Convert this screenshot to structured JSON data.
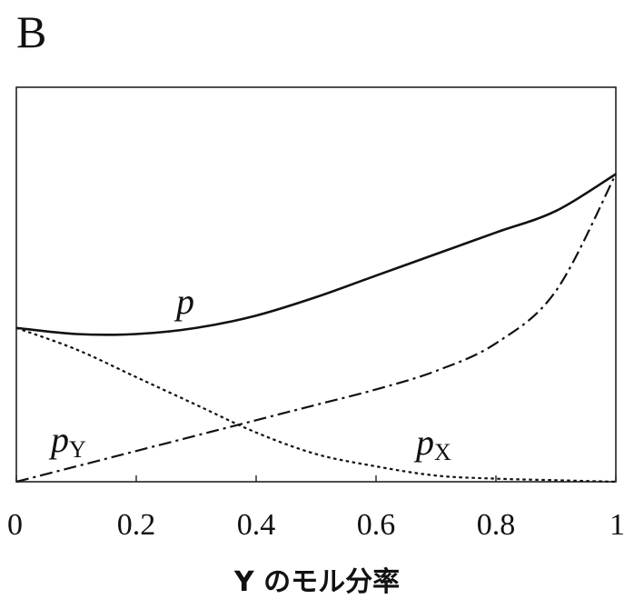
{
  "panel_label": "B",
  "chart_data": {
    "type": "line",
    "xlabel": "Y のモル分率",
    "ylabel": "",
    "xlim": [
      0,
      1
    ],
    "ylim": [
      0,
      1
    ],
    "xticks": [
      "0",
      "0.2",
      "0.4",
      "0.6",
      "0.8",
      "1"
    ],
    "grid": false,
    "x": [
      0,
      0.1,
      0.2,
      0.3,
      0.4,
      0.5,
      0.6,
      0.7,
      0.8,
      0.9,
      1.0
    ],
    "series": [
      {
        "name": "p",
        "style": "solid",
        "values": [
          0.5,
          0.48,
          0.48,
          0.5,
          0.54,
          0.6,
          0.67,
          0.74,
          0.81,
          0.88,
          1.0
        ]
      },
      {
        "name": "p",
        "subscript": "Y",
        "style": "dashdot",
        "values": [
          0.0,
          0.05,
          0.1,
          0.15,
          0.2,
          0.25,
          0.3,
          0.36,
          0.45,
          0.62,
          1.0
        ]
      },
      {
        "name": "p",
        "subscript": "X",
        "style": "dotted",
        "values": [
          0.5,
          0.43,
          0.34,
          0.25,
          0.16,
          0.09,
          0.05,
          0.02,
          0.01,
          0.005,
          0.0
        ]
      }
    ]
  }
}
